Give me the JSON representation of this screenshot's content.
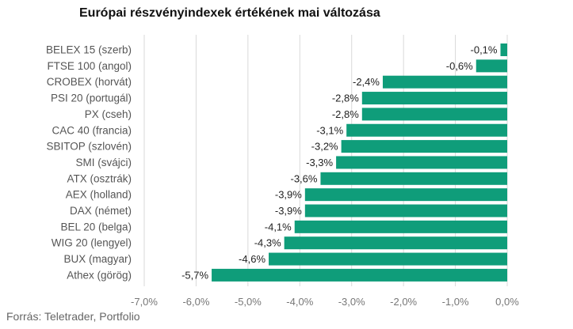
{
  "chart_data": {
    "type": "bar",
    "orientation": "horizontal",
    "title": "Európai részvényindexek értékének mai változása",
    "source": "Forrás: Teletrader, Portfolio",
    "categories": [
      "BELEX 15 (szerb)",
      "FTSE 100 (angol)",
      "CROBEX (horvát)",
      "PSI 20 (portugál)",
      "PX (cseh)",
      "CAC 40 (francia)",
      "SBITOP (szlovén)",
      "SMI (svájci)",
      "ATX (osztrák)",
      "AEX (holland)",
      "DAX (német)",
      "BEL 20 (belga)",
      "WIG 20 (lengyel)",
      "BUX (magyar)",
      "Athex (görög)"
    ],
    "values": [
      -0.13,
      -0.6,
      -2.4,
      -2.8,
      -2.8,
      -3.1,
      -3.2,
      -3.3,
      -3.6,
      -3.9,
      -3.9,
      -4.1,
      -4.3,
      -4.6,
      -5.7
    ],
    "value_labels": [
      "-0,1%",
      "-0,6%",
      "-2,4%",
      "-2,8%",
      "-2,8%",
      "-3,1%",
      "-3,2%",
      "-3,3%",
      "-3,6%",
      "-3,9%",
      "-3,9%",
      "-4,1%",
      "-4,3%",
      "-4,6%",
      "-5,7%"
    ],
    "xlim": [
      -7.0,
      0.0
    ],
    "xticks": [
      -7.0,
      -6.0,
      -5.0,
      -4.0,
      -3.0,
      -2.0,
      -1.0,
      0.0
    ],
    "xtick_labels": [
      "-7,0%",
      "-6,0%",
      "-5,0%",
      "-4,0%",
      "-3,0%",
      "-2,0%",
      "-1,0%",
      "0,0%"
    ],
    "grid": "vertical",
    "legend": "none",
    "bar_color": "#0f9d7a"
  }
}
